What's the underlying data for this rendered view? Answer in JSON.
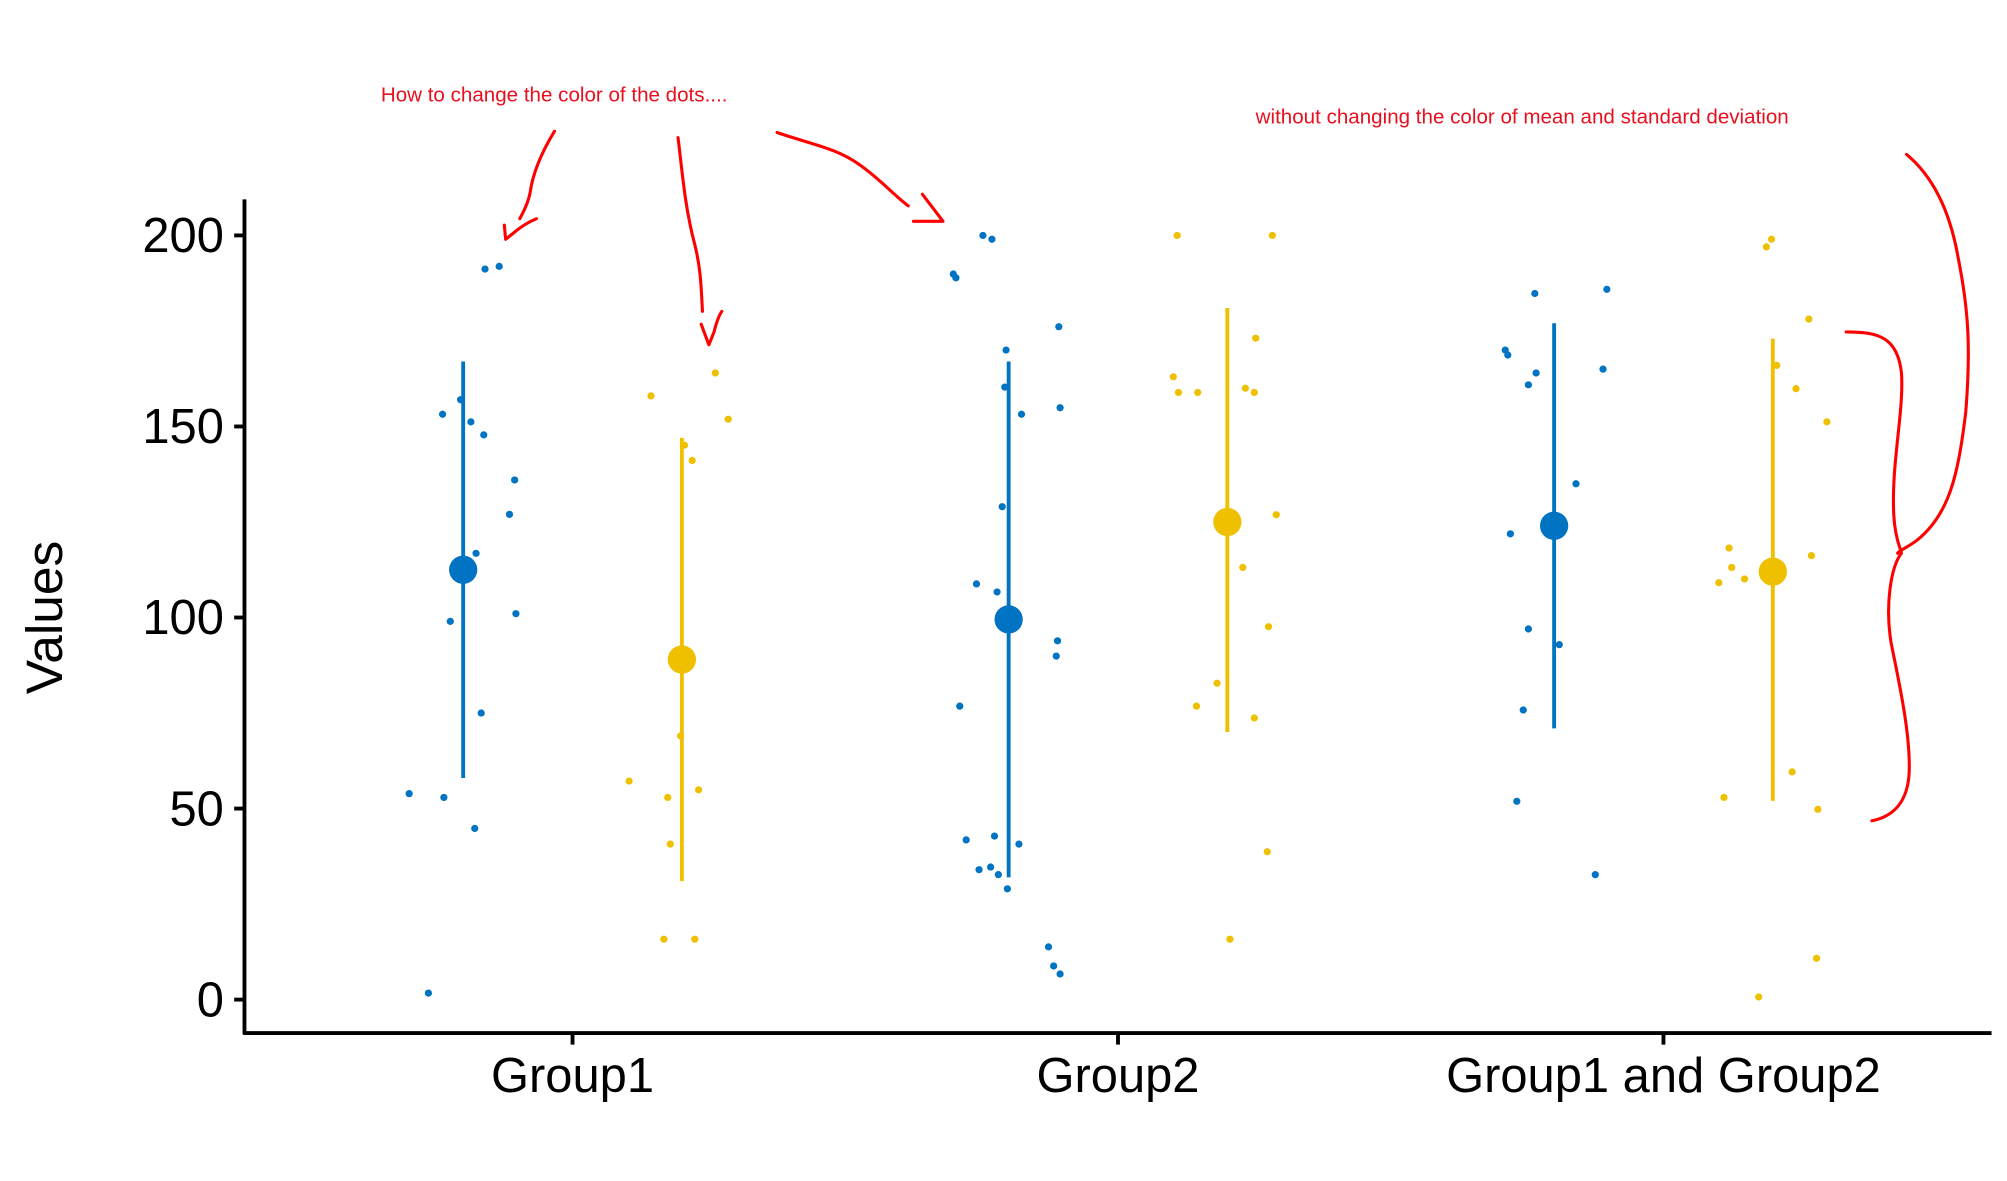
{
  "chart_data": {
    "type": "scatter",
    "subtype": "jitter with mean ± sd",
    "title": "",
    "xlabel": "",
    "ylabel": "Values",
    "ylim": [
      0,
      200
    ],
    "yticks": [
      0,
      50,
      100,
      150,
      200
    ],
    "ytick_labels": [
      "0",
      "50",
      "100",
      "150",
      "200"
    ],
    "categories": [
      "Group1",
      "Group2",
      "Group1 and Group2"
    ],
    "grid": false,
    "legend": "none",
    "colors": {
      "series1": "#0073C2",
      "series2": "#EFC000",
      "annotation": "#e8101e"
    },
    "series": [
      {
        "name": "series1",
        "color": "#0073C2",
        "summary": [
          {
            "mean": 112.5,
            "sd_low": 58,
            "sd_high": 167
          },
          {
            "mean": 99.5,
            "sd_low": 32,
            "sd_high": 167
          },
          {
            "mean": 124,
            "sd_low": 71,
            "sd_high": 177
          }
        ],
        "points": [
          [
            191.2,
            191.9,
            153.2,
            157,
            151.2,
            147.8,
            136,
            127,
            116.8,
            99,
            101,
            75,
            53.9,
            52.9,
            44.8,
            1.7
          ],
          [
            200,
            199,
            189.9,
            188.9,
            176.1,
            170,
            160.3,
            153.2,
            154.9,
            129,
            108.8,
            106.7,
            93.9,
            89.9,
            76.8,
            41.8,
            42.8,
            40.7,
            34,
            34.7,
            32.7,
            29,
            13.8,
            8.8,
            6.7
          ],
          [
            184.8,
            185.9,
            170,
            168.7,
            164,
            160.9,
            165,
            135,
            121.9,
            92.9,
            97,
            75.8,
            51.9,
            32.7
          ]
        ]
      },
      {
        "name": "series2",
        "color": "#EFC000",
        "summary": [
          {
            "mean": 89,
            "sd_low": 31,
            "sd_high": 147
          },
          {
            "mean": 125,
            "sd_low": 70,
            "sd_high": 181
          },
          {
            "mean": 112,
            "sd_low": 52,
            "sd_high": 173
          }
        ],
        "points": [
          [
            158,
            164,
            151.9,
            145.1,
            141.1,
            69,
            57.2,
            52.9,
            54.9,
            40.7,
            15.8,
            15.8
          ],
          [
            200,
            200,
            163,
            158.9,
            158.9,
            173.1,
            160,
            158.9,
            126.9,
            113.1,
            97.6,
            82.8,
            76.8,
            73.7,
            38.7,
            15.8
          ],
          [
            199,
            197,
            178.1,
            166,
            159.9,
            151.2,
            118.2,
            113.1,
            110.1,
            109.1,
            116.2,
            59.6,
            49.8,
            52.9,
            10.8,
            0.7
          ]
        ]
      }
    ],
    "annotations": [
      "How to change the color of the dots....",
      "without changing the color of mean and standard deviation"
    ]
  }
}
